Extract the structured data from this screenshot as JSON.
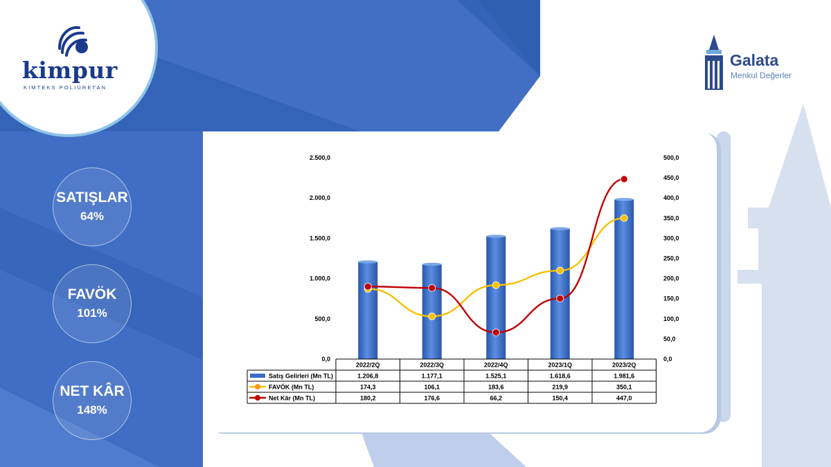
{
  "brand": {
    "company": "kimpur",
    "company_tagline": "KIMTEKS POLIÜRETAN",
    "broker": "Galata",
    "broker_tagline": "Menkul Değerler"
  },
  "stats": [
    {
      "title": "SATIŞLAR",
      "value": "64%"
    },
    {
      "title": "FAVÖK",
      "value": "101%"
    },
    {
      "title": "NET KÂR",
      "value": "148%"
    }
  ],
  "colors": {
    "bg_dark": "#2f5fb3",
    "bg_mid": "#3f6fc4",
    "bar": "#3a6cc8",
    "favok": "#f6c000",
    "net": "#c00000"
  },
  "chart_data": {
    "type": "bar",
    "categories": [
      "2022/2Q",
      "2022/3Q",
      "2022/4Q",
      "2023/1Q",
      "2023/2Q"
    ],
    "y_left": {
      "min": 0,
      "max": 2500,
      "ticks": [
        "0,0",
        "500,0",
        "1.000,0",
        "1.500,0",
        "2.000,0",
        "2.500,0"
      ]
    },
    "y_right": {
      "min": 0,
      "max": 500,
      "ticks": [
        "0,0",
        "50,0",
        "100,0",
        "150,0",
        "200,0",
        "250,0",
        "300,0",
        "350,0",
        "400,0",
        "450,0",
        "500,0"
      ]
    },
    "series": [
      {
        "name": "Satış Gelirleri (Mn TL)",
        "kind": "bar",
        "axis": "left",
        "color": "#3a6cc8",
        "values": [
          1206.8,
          1177.1,
          1525.1,
          1618.6,
          1981.6
        ],
        "labels": [
          "1.206,8",
          "1.177,1",
          "1.525,1",
          "1.618,6",
          "1.981,6"
        ]
      },
      {
        "name": "FAVÖK (Mn TL)",
        "kind": "line",
        "axis": "right",
        "color": "#f6c000",
        "values": [
          174.3,
          106.1,
          183.6,
          219.9,
          350.1
        ],
        "labels": [
          "174,3",
          "106,1",
          "183,6",
          "219,9",
          "350,1"
        ]
      },
      {
        "name": "Net Kâr (Mn TL)",
        "kind": "line",
        "axis": "right",
        "color": "#c00000",
        "values": [
          180.2,
          176.6,
          66.2,
          150.4,
          447.0
        ],
        "labels": [
          "180,2",
          "176,6",
          "66,2",
          "150,4",
          "447,0"
        ]
      }
    ],
    "grid": false,
    "legend": "data-table"
  }
}
